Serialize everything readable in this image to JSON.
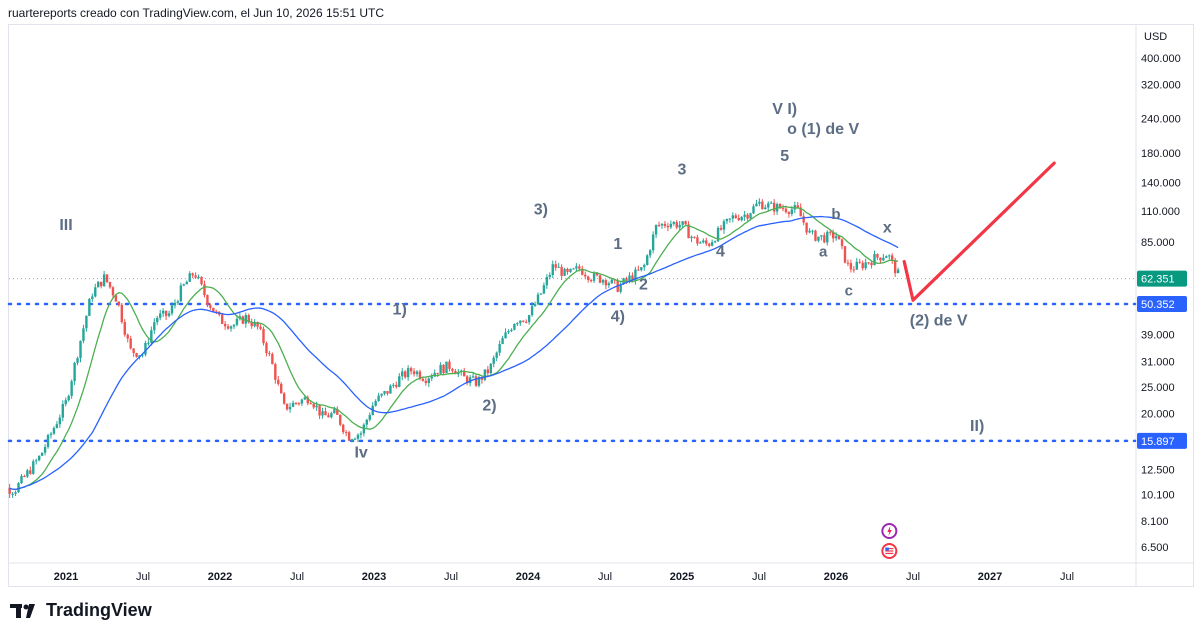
{
  "header": {
    "attribution": "ruartereports creado con TradingView.com, el Jun 10, 2026 15:51 UTC"
  },
  "footer": {
    "brand": "TradingView"
  },
  "colors": {
    "ma_fast": "#4caf50",
    "ma_slow": "#2962ff",
    "candles_up": "#26a69a",
    "candles_down": "#ef5350",
    "level_line": "#2962ff",
    "projection": "#f23645",
    "wave_label": "#5d6e84",
    "current_price_tag": "#089981"
  },
  "icons": [
    "lightning-icon",
    "us-flag-icon"
  ],
  "chart_data": {
    "type": "candlestick",
    "scale": "log",
    "currency": "USD",
    "y_ticks": [
      "400.000",
      "320.000",
      "240.000",
      "180.000",
      "140.000",
      "110.000",
      "85.000",
      "62.000",
      "50.000",
      "39.000",
      "31.000",
      "25.000",
      "20.000",
      "15.500",
      "12.500",
      "10.100",
      "8.100",
      "6.500"
    ],
    "x_ticks": [
      "2021",
      "Jul",
      "2022",
      "Jul",
      "2023",
      "Jul",
      "2024",
      "Jul",
      "2025",
      "Jul",
      "2026",
      "Jul",
      "2027",
      "Jul"
    ],
    "price_path": [
      [
        "2020-07",
        11
      ],
      [
        "2020-09",
        10.5
      ],
      [
        "2020-11",
        14
      ],
      [
        "2021-01",
        22
      ],
      [
        "2021-02",
        35
      ],
      [
        "2021-03",
        55
      ],
      [
        "2021-04",
        63
      ],
      [
        "2021-05",
        52
      ],
      [
        "2021-06",
        34
      ],
      [
        "2021-07",
        33
      ],
      [
        "2021-08",
        45
      ],
      [
        "2021-09",
        46
      ],
      [
        "2021-10",
        57
      ],
      [
        "2021-11",
        66
      ],
      [
        "2021-12",
        52
      ],
      [
        "2022-01",
        44
      ],
      [
        "2022-02",
        42
      ],
      [
        "2022-03",
        45
      ],
      [
        "2022-04",
        41
      ],
      [
        "2022-05",
        31
      ],
      [
        "2022-06",
        21
      ],
      [
        "2022-07",
        22
      ],
      [
        "2022-08",
        23
      ],
      [
        "2022-09",
        19.5
      ],
      [
        "2022-10",
        20
      ],
      [
        "2022-11",
        16.5
      ],
      [
        "2022-12",
        17
      ],
      [
        "2023-01",
        22
      ],
      [
        "2023-02",
        24
      ],
      [
        "2023-03",
        27
      ],
      [
        "2023-04",
        29
      ],
      [
        "2023-05",
        27
      ],
      [
        "2023-06",
        29
      ],
      [
        "2023-07",
        30
      ],
      [
        "2023-08",
        27
      ],
      [
        "2023-09",
        26
      ],
      [
        "2023-10",
        29
      ],
      [
        "2023-11",
        37
      ],
      [
        "2023-12",
        44
      ],
      [
        "2024-01",
        45
      ],
      [
        "2024-02",
        55
      ],
      [
        "2024-03",
        70
      ],
      [
        "2024-04",
        64
      ],
      [
        "2024-05",
        68
      ],
      [
        "2024-06",
        63
      ],
      [
        "2024-07",
        62
      ],
      [
        "2024-08",
        58
      ],
      [
        "2024-09",
        63
      ],
      [
        "2024-10",
        68
      ],
      [
        "2024-11",
        97
      ],
      [
        "2024-12",
        100
      ],
      [
        "2025-01",
        98
      ],
      [
        "2025-02",
        86
      ],
      [
        "2025-03",
        83
      ],
      [
        "2025-04",
        94
      ],
      [
        "2025-05",
        105
      ],
      [
        "2025-06",
        107
      ],
      [
        "2025-07",
        118
      ],
      [
        "2025-08",
        114
      ],
      [
        "2025-09",
        113
      ],
      [
        "2025-10",
        111
      ],
      [
        "2025-11",
        90
      ],
      [
        "2025-12",
        88
      ],
      [
        "2026-01",
        90
      ],
      [
        "2026-02",
        68
      ],
      [
        "2026-03",
        70
      ],
      [
        "2026-04",
        74
      ],
      [
        "2026-05",
        77
      ],
      [
        "2026-06",
        62.351
      ]
    ],
    "levels": [
      {
        "price": 50.352,
        "label": "50.352"
      },
      {
        "price": 15.897,
        "label": "15.897"
      }
    ],
    "current_price": {
      "price": 62.351,
      "label": "62.351"
    },
    "projection": [
      [
        "2026-06",
        72
      ],
      [
        "2026-07",
        52
      ],
      [
        "2027-06",
        165
      ]
    ],
    "wave_labels": [
      {
        "text": "III",
        "date": "2021-01",
        "price": 94
      },
      {
        "text": "Iv",
        "date": "2022-12",
        "price": 13.8
      },
      {
        "text": "1)",
        "date": "2023-03",
        "price": 46
      },
      {
        "text": "2)",
        "date": "2023-10",
        "price": 20.5
      },
      {
        "text": "3)",
        "date": "2024-02",
        "price": 107
      },
      {
        "text": "1",
        "date": "2024-08",
        "price": 80
      },
      {
        "text": "2",
        "date": "2024-10",
        "price": 57
      },
      {
        "text": "4)",
        "date": "2024-08",
        "price": 43.5
      },
      {
        "text": "3",
        "date": "2025-01",
        "price": 150
      },
      {
        "text": "4",
        "date": "2025-04",
        "price": 75
      },
      {
        "text": "V I)",
        "date": "2025-09",
        "price": 250
      },
      {
        "text": "o (1) de V",
        "date": "2025-12",
        "price": 211
      },
      {
        "text": "5",
        "date": "2025-09",
        "price": 168
      },
      {
        "text": "b",
        "date": "2026-01",
        "price": 103
      },
      {
        "text": "a",
        "date": "2025-12",
        "price": 75
      },
      {
        "text": "x",
        "date": "2026-05",
        "price": 92
      },
      {
        "text": "c",
        "date": "2026-02",
        "price": 54
      },
      {
        "text": "(2) de V",
        "date": "2026-09",
        "price": 42
      },
      {
        "text": "II)",
        "date": "2026-12",
        "price": 17.3
      }
    ]
  }
}
